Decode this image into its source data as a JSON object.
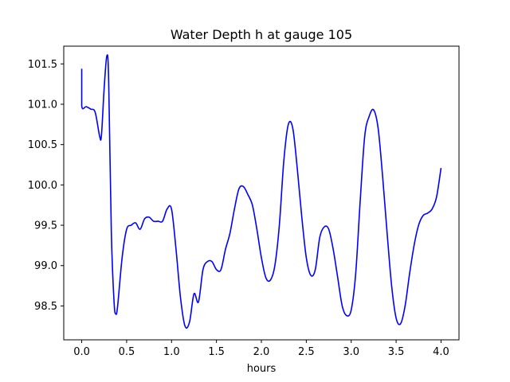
{
  "chart_data": {
    "type": "line",
    "title": "Water Depth h at gauge 105",
    "xlabel": "hours",
    "ylabel": "",
    "xlim": [
      -0.2,
      4.2
    ],
    "ylim": [
      98.08,
      101.72
    ],
    "grid": false,
    "legend": "none",
    "x_ticks": [
      0.0,
      0.5,
      1.0,
      1.5,
      2.0,
      2.5,
      3.0,
      3.5,
      4.0
    ],
    "x_tick_labels": [
      "0.0",
      "0.5",
      "1.0",
      "1.5",
      "2.0",
      "2.5",
      "3.0",
      "3.5",
      "4.0"
    ],
    "y_ticks": [
      98.5,
      99.0,
      99.5,
      100.0,
      100.5,
      101.0,
      101.5
    ],
    "y_tick_labels": [
      "98.5",
      "99.0",
      "99.5",
      "100.0",
      "100.5",
      "101.0",
      "101.5"
    ],
    "series": [
      {
        "color": "#0000ff",
        "x": [
          0.0,
          0.0,
          0.05,
          0.1,
          0.15,
          0.2,
          0.22,
          0.25,
          0.28,
          0.3,
          0.33,
          0.36,
          0.38,
          0.4,
          0.45,
          0.5,
          0.55,
          0.6,
          0.65,
          0.7,
          0.75,
          0.8,
          0.85,
          0.9,
          0.95,
          1.0,
          1.05,
          1.1,
          1.15,
          1.2,
          1.25,
          1.3,
          1.35,
          1.4,
          1.45,
          1.5,
          1.55,
          1.6,
          1.65,
          1.7,
          1.75,
          1.8,
          1.85,
          1.9,
          1.95,
          2.0,
          2.05,
          2.1,
          2.15,
          2.2,
          2.25,
          2.3,
          2.35,
          2.4,
          2.45,
          2.5,
          2.55,
          2.6,
          2.65,
          2.7,
          2.75,
          2.8,
          2.85,
          2.9,
          2.95,
          3.0,
          3.05,
          3.1,
          3.15,
          3.2,
          3.25,
          3.3,
          3.35,
          3.4,
          3.45,
          3.5,
          3.55,
          3.6,
          3.65,
          3.7,
          3.75,
          3.8,
          3.85,
          3.9,
          3.95,
          4.0
        ],
        "y": [
          101.44,
          100.98,
          100.97,
          100.94,
          100.9,
          100.6,
          100.62,
          101.2,
          101.6,
          101.3,
          99.4,
          98.55,
          98.4,
          98.5,
          99.1,
          99.45,
          99.5,
          99.53,
          99.45,
          99.58,
          99.6,
          99.55,
          99.55,
          99.55,
          99.7,
          99.7,
          99.2,
          98.6,
          98.25,
          98.3,
          98.65,
          98.55,
          98.95,
          99.05,
          99.05,
          98.95,
          98.95,
          99.2,
          99.4,
          99.7,
          99.95,
          99.98,
          99.88,
          99.75,
          99.45,
          99.1,
          98.85,
          98.82,
          99.0,
          99.5,
          100.3,
          100.75,
          100.7,
          100.2,
          99.6,
          99.1,
          98.88,
          98.95,
          99.35,
          99.48,
          99.45,
          99.2,
          98.85,
          98.5,
          98.38,
          98.45,
          98.9,
          99.8,
          100.6,
          100.85,
          100.93,
          100.7,
          100.1,
          99.4,
          98.75,
          98.35,
          98.28,
          98.5,
          98.9,
          99.25,
          99.5,
          99.62,
          99.65,
          99.7,
          99.85,
          100.21
        ]
      }
    ]
  }
}
